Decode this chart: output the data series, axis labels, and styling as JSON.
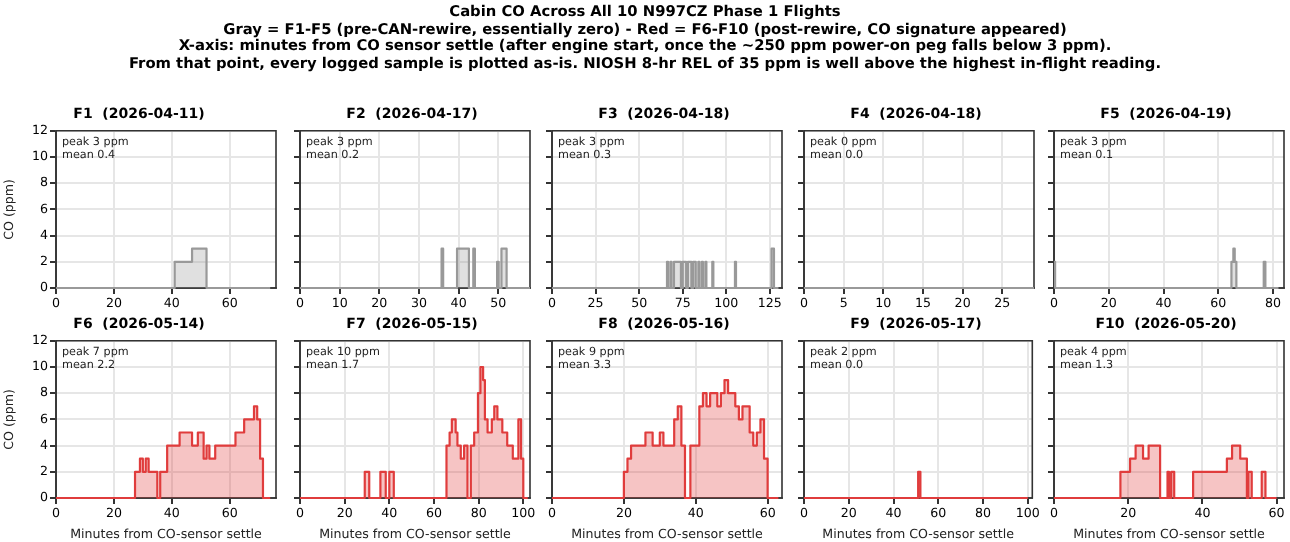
{
  "chart_data": [
    {
      "type": "other",
      "title": "Cabin CO Across All 10 N997CZ Phase 1 Flights",
      "annotations": [
        "Gray = F1-F5 (pre-CAN-rewire, essentially zero) - Red = F6-F10 (post-rewire, CO signature appeared)",
        "X-axis: minutes from CO sensor settle (after engine start, once the ~250 ppm power-on peg falls below 3 ppm).",
        "From that point, every logged sample is plotted as-is. NIOSH 8-hr REL of 35 ppm is well above the highest in-flight reading."
      ]
    },
    {
      "type": "step",
      "title": "F1  (2026-04-11)",
      "ylabel": "CO (ppm)",
      "color": "#999999",
      "x": [
        0,
        41,
        47,
        52,
        74
      ],
      "values": [
        0,
        2,
        3,
        0,
        0
      ],
      "xlim": [
        0,
        76
      ],
      "xticks": [
        0,
        20,
        40,
        60
      ],
      "ylim": [
        0,
        12
      ],
      "yticks": [
        0,
        2,
        4,
        6,
        8,
        10,
        12
      ],
      "grid": true,
      "annotations": [
        "peak 3 ppm",
        "mean 0.4"
      ]
    },
    {
      "type": "step",
      "title": "F2  (2026-04-17)",
      "color": "#999999",
      "x": [
        0,
        35.7,
        36.1,
        39.6,
        42.6,
        43.7,
        44.1,
        49.7,
        50.1,
        50.8,
        52.1,
        58
      ],
      "values": [
        0,
        3,
        0,
        3,
        0,
        3,
        0,
        2,
        0,
        3,
        0,
        0
      ],
      "xlim": [
        0,
        58
      ],
      "xticks": [
        0,
        10,
        20,
        30,
        40,
        50
      ],
      "ylim": [
        0,
        12
      ],
      "yticks": [
        0,
        2,
        4,
        6,
        8,
        10,
        12
      ],
      "grid": true,
      "tick_labels": "x",
      "annotations": [
        "peak 3 ppm",
        "mean 0.2"
      ]
    },
    {
      "type": "step",
      "title": "F3  (2026-04-18)",
      "color": "#999999",
      "x": [
        0,
        66,
        66.6,
        68,
        68.6,
        70,
        74,
        75,
        77,
        78,
        80,
        81,
        82.5,
        84,
        84.6,
        86,
        86.6,
        88,
        88.6,
        92,
        92.6,
        105,
        105.6,
        126,
        127.4,
        130
      ],
      "values": [
        0,
        2,
        0,
        2,
        0,
        2,
        0,
        2,
        0,
        2,
        0,
        2,
        0,
        2,
        0,
        2,
        0,
        2,
        0,
        2,
        0,
        2,
        0,
        3,
        0,
        0
      ],
      "xlim": [
        0,
        132
      ],
      "xticks": [
        0,
        25,
        50,
        75,
        100,
        125
      ],
      "ylim": [
        0,
        12
      ],
      "yticks": [
        0,
        2,
        4,
        6,
        8,
        10,
        12
      ],
      "grid": true,
      "tick_labels": "x",
      "annotations": [
        "peak 3 ppm",
        "mean 0.3"
      ]
    },
    {
      "type": "step",
      "title": "F4  (2026-04-18)",
      "color": "#999999",
      "x": [
        0,
        29
      ],
      "values": [
        0,
        0
      ],
      "xlim": [
        0,
        29
      ],
      "xticks": [
        0,
        5,
        10,
        15,
        20,
        25
      ],
      "ylim": [
        0,
        12
      ],
      "yticks": [
        0,
        2,
        4,
        6,
        8,
        10,
        12
      ],
      "grid": true,
      "tick_labels": "x",
      "annotations": [
        "peak 0 ppm",
        "mean 0.0"
      ]
    },
    {
      "type": "step",
      "title": "F5  (2026-04-19)",
      "color": "#999999",
      "x": [
        0,
        0.4,
        64.8,
        65.5,
        66,
        66.6,
        76.6,
        77.2,
        82
      ],
      "values": [
        2,
        0,
        2,
        3,
        2,
        0,
        2,
        0,
        0
      ],
      "xlim": [
        0,
        84
      ],
      "xticks": [
        0,
        20,
        40,
        60,
        80
      ],
      "ylim": [
        0,
        12
      ],
      "yticks": [
        0,
        2,
        4,
        6,
        8,
        10,
        12
      ],
      "grid": true,
      "tick_labels": "x",
      "annotations": [
        "peak 3 ppm",
        "mean 0.1"
      ]
    },
    {
      "type": "step",
      "title": "F6  (2026-05-14)",
      "xlabel": "Minutes from CO-sensor settle",
      "ylabel": "CO (ppm)",
      "color": "#e03c3c",
      "x": [
        0,
        27.3,
        29,
        30,
        31,
        32,
        35,
        36,
        38.4,
        42.7,
        47,
        49,
        51,
        52,
        53,
        55,
        62,
        65,
        68.4,
        69.5,
        70.5,
        71.5,
        74
      ],
      "values": [
        0,
        2,
        3,
        2,
        3,
        2,
        0,
        2,
        4,
        5,
        4,
        5,
        3,
        4,
        3,
        4,
        5,
        6,
        7,
        6,
        3,
        0,
        0
      ],
      "xlim": [
        0,
        76
      ],
      "xticks": [
        0,
        20,
        40,
        60
      ],
      "ylim": [
        0,
        12
      ],
      "yticks": [
        0,
        2,
        4,
        6,
        8,
        10,
        12
      ],
      "grid": true,
      "annotations": [
        "peak 7 ppm",
        "mean 2.2"
      ]
    },
    {
      "type": "step",
      "title": "F7  (2026-05-15)",
      "xlabel": "Minutes from CO-sensor settle",
      "color": "#e03c3c",
      "x": [
        0,
        29,
        31,
        36,
        38.4,
        40,
        42,
        65.6,
        67,
        68,
        69.7,
        70.5,
        72,
        73.5,
        75,
        76.5,
        78,
        79.7,
        80.8,
        82,
        82.8,
        84,
        85.9,
        87,
        88.4,
        90.6,
        92.8,
        95.3,
        97.8,
        99,
        100,
        102
      ],
      "values": [
        0,
        2,
        0,
        2,
        0,
        2,
        0,
        4,
        5,
        6,
        5,
        4,
        3,
        4,
        0,
        4,
        5,
        8,
        10,
        9,
        6,
        5,
        6,
        7,
        6,
        5,
        4,
        3,
        6,
        3,
        0,
        0
      ],
      "xlim": [
        0,
        103
      ],
      "xticks": [
        0,
        20,
        40,
        60,
        80,
        100
      ],
      "ylim": [
        0,
        12
      ],
      "yticks": [
        0,
        2,
        4,
        6,
        8,
        10,
        12
      ],
      "grid": true,
      "tick_labels": "x",
      "annotations": [
        "peak 10 ppm",
        "mean 1.7"
      ]
    },
    {
      "type": "step",
      "title": "F8  (2026-05-16)",
      "xlabel": "Minutes from CO-sensor settle",
      "color": "#e03c3c",
      "x": [
        0,
        20,
        21,
        22,
        26,
        28,
        30,
        31,
        34,
        35,
        36,
        37,
        38.5,
        41,
        42,
        43,
        44,
        46,
        47,
        48,
        49,
        51,
        52,
        53,
        55,
        56,
        57,
        58,
        59,
        60,
        63
      ],
      "values": [
        0,
        2,
        3,
        4,
        5,
        4,
        5,
        4,
        6,
        7,
        4,
        0,
        4,
        7,
        8,
        7,
        8,
        7,
        8,
        9,
        8,
        7,
        6,
        7,
        5,
        4,
        5,
        6,
        3,
        0,
        0
      ],
      "xlim": [
        0,
        64
      ],
      "xticks": [
        0,
        20,
        40,
        60
      ],
      "ylim": [
        0,
        12
      ],
      "yticks": [
        0,
        2,
        4,
        6,
        8,
        10,
        12
      ],
      "grid": true,
      "tick_labels": "x",
      "annotations": [
        "peak 9 ppm",
        "mean 3.3"
      ]
    },
    {
      "type": "step",
      "title": "F9  (2026-05-17)",
      "xlabel": "Minutes from CO-sensor settle",
      "color": "#e03c3c",
      "x": [
        0,
        51,
        52,
        100
      ],
      "values": [
        0,
        2,
        0,
        0
      ],
      "xlim": [
        0,
        102
      ],
      "xticks": [
        0,
        20,
        40,
        60,
        80,
        100
      ],
      "ylim": [
        0,
        12
      ],
      "yticks": [
        0,
        2,
        4,
        6,
        8,
        10,
        12
      ],
      "grid": true,
      "tick_labels": "x",
      "annotations": [
        "peak 2 ppm",
        "mean 0.0"
      ]
    },
    {
      "type": "step",
      "title": "F10  (2026-05-20)",
      "xlabel": "Minutes from CO-sensor settle",
      "color": "#e03c3c",
      "x": [
        0,
        17.9,
        20.5,
        22,
        24,
        25.5,
        28.6,
        30.6,
        31,
        31.6,
        32.4,
        37.5,
        46.6,
        48,
        50.2,
        52,
        52.4,
        53.3,
        56,
        57,
        60
      ],
      "values": [
        0,
        2,
        3,
        4,
        3,
        4,
        0,
        2,
        0,
        2,
        0,
        2,
        3,
        4,
        3,
        0,
        2,
        0,
        2,
        0,
        0
      ],
      "xlim": [
        0,
        62
      ],
      "xticks": [
        0,
        20,
        40,
        60
      ],
      "ylim": [
        0,
        12
      ],
      "yticks": [
        0,
        2,
        4,
        6,
        8,
        10,
        12
      ],
      "grid": true,
      "tick_labels": "x",
      "annotations": [
        "peak 4 ppm",
        "mean 1.3"
      ]
    }
  ]
}
